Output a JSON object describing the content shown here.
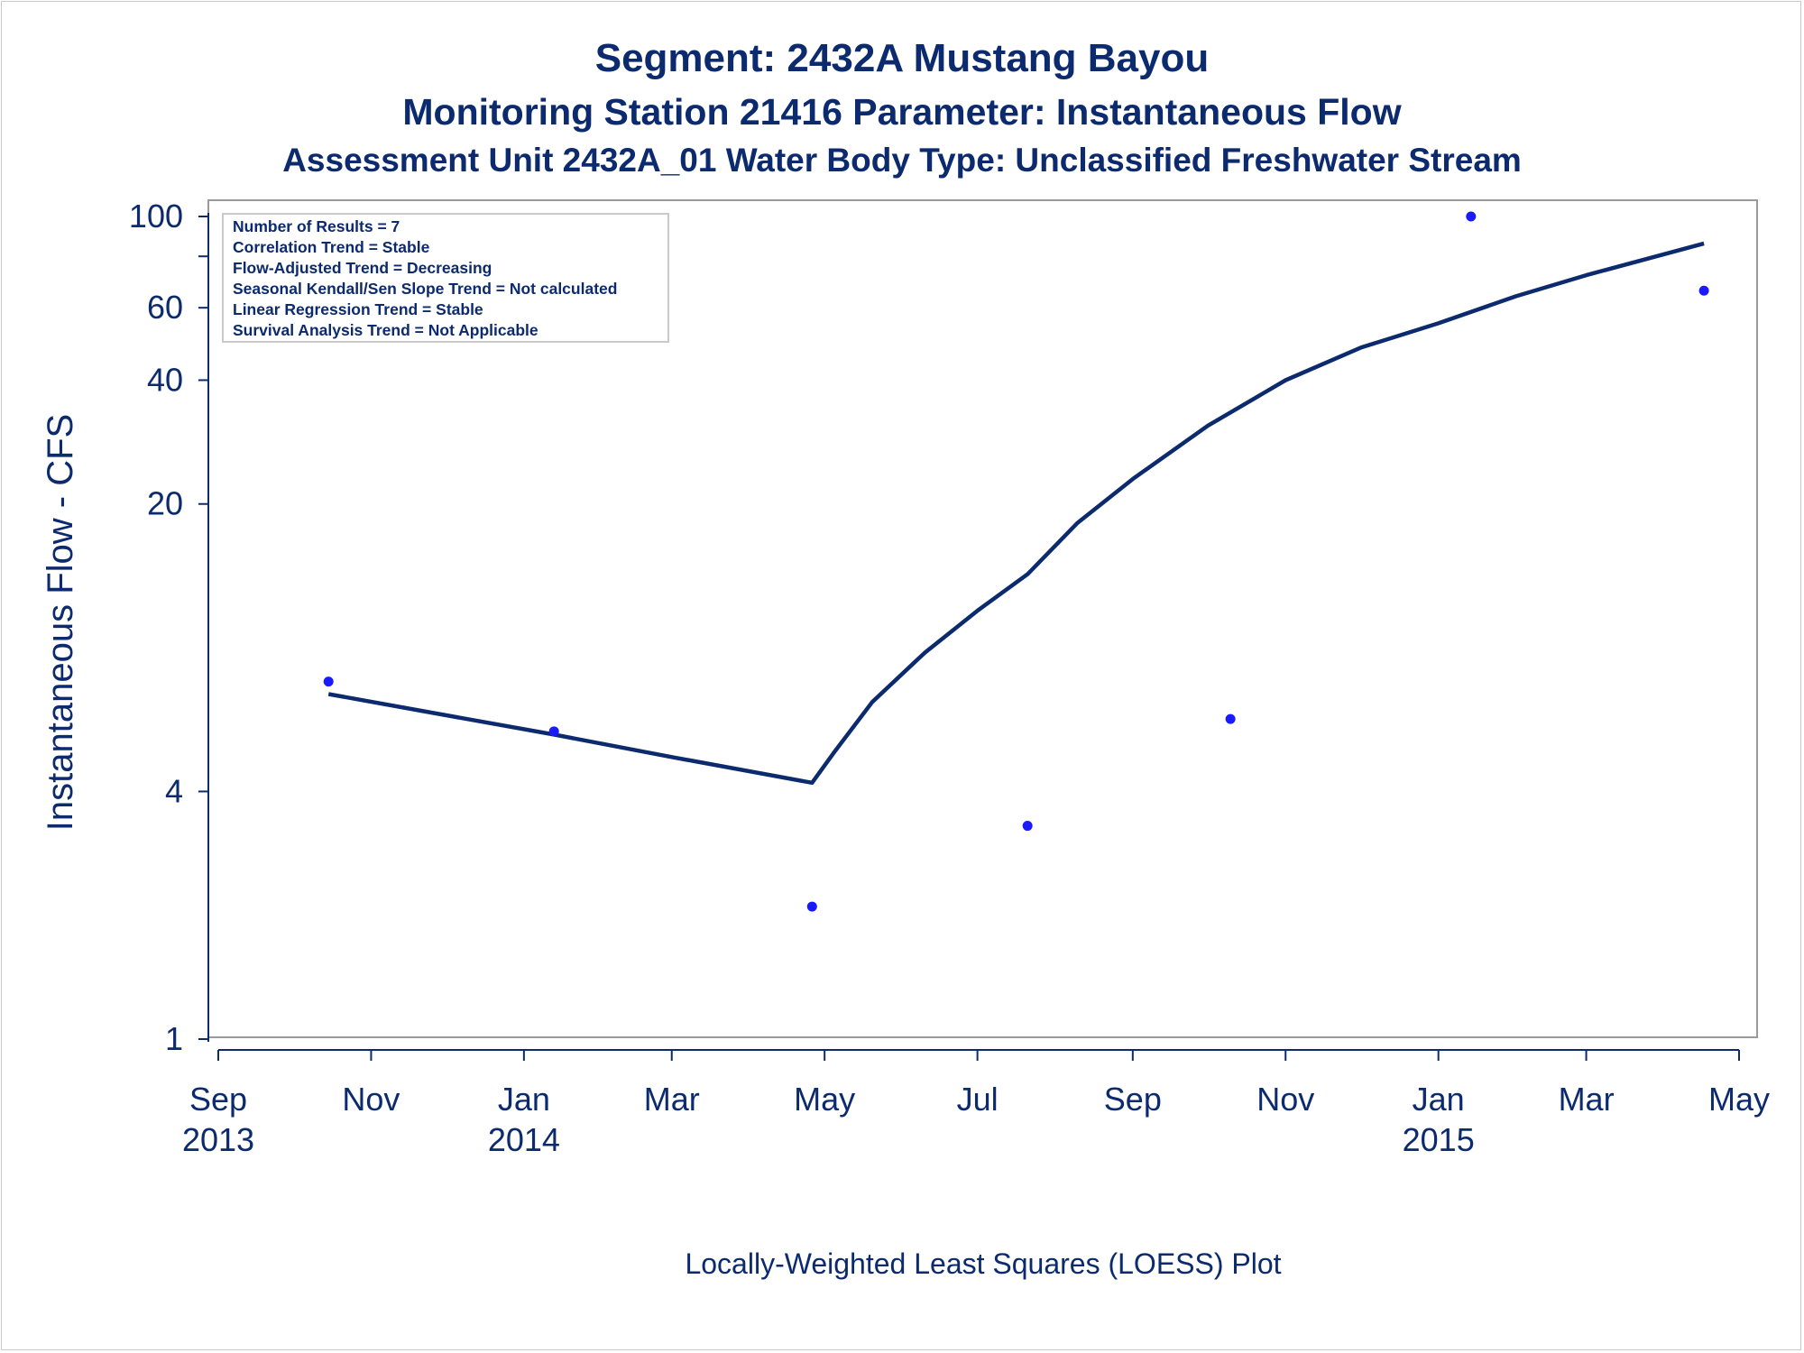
{
  "titles": {
    "line1": "Segment: 2432A  Mustang Bayou",
    "line2": "Monitoring Station 21416 Parameter: Instantaneous Flow",
    "line3": "Assessment Unit 2432A_01   Water Body Type: Unclassified Freshwater Stream"
  },
  "stats_box": {
    "lines": [
      "Number of Results = 7",
      "Correlation Trend = Stable",
      "Flow-Adjusted Trend = Decreasing",
      "Seasonal Kendall/Sen Slope Trend = Not calculated",
      "Linear Regression Trend = Stable",
      "Survival Analysis Trend = Not Applicable"
    ]
  },
  "footnote": "Locally-Weighted Least Squares (LOESS) Plot",
  "colors": {
    "text": "#0c2a6e",
    "loess_line": "#0c2a6e",
    "points": "#1a1aff",
    "frame": "#9a9a9a"
  },
  "chart_data": {
    "type": "scatter",
    "title": "",
    "xlabel": "",
    "ylabel": "Instantaneous Flow - CFS",
    "y_scale": "log",
    "ylim": [
      1,
      100
    ],
    "xlim": [
      "2013-09-01",
      "2015-05-01"
    ],
    "y_ticks": [
      {
        "value": 1,
        "label": "1"
      },
      {
        "value": 4,
        "label": "4"
      },
      {
        "value": 20,
        "label": "20"
      },
      {
        "value": 40,
        "label": "40"
      },
      {
        "value": 60,
        "label": "60"
      },
      {
        "value": 100,
        "label": "100"
      }
    ],
    "y_minor_ticks": [
      80
    ],
    "x_ticks": [
      {
        "date": "2013-09-01",
        "label": "Sep",
        "year": "2013"
      },
      {
        "date": "2013-11-01",
        "label": "Nov",
        "year": ""
      },
      {
        "date": "2014-01-01",
        "label": "Jan",
        "year": "2014"
      },
      {
        "date": "2014-03-01",
        "label": "Mar",
        "year": ""
      },
      {
        "date": "2014-05-01",
        "label": "May",
        "year": ""
      },
      {
        "date": "2014-07-01",
        "label": "Jul",
        "year": ""
      },
      {
        "date": "2014-09-01",
        "label": "Sep",
        "year": ""
      },
      {
        "date": "2014-11-01",
        "label": "Nov",
        "year": ""
      },
      {
        "date": "2015-01-01",
        "label": "Jan",
        "year": "2015"
      },
      {
        "date": "2015-03-01",
        "label": "Mar",
        "year": ""
      },
      {
        "date": "2015-05-01",
        "label": "May",
        "year": ""
      }
    ],
    "points": [
      {
        "x": "2013-10-15",
        "y": 7.4
      },
      {
        "x": "2014-01-13",
        "y": 5.6
      },
      {
        "x": "2014-04-26",
        "y": 2.1
      },
      {
        "x": "2014-07-21",
        "y": 3.3
      },
      {
        "x": "2014-10-10",
        "y": 6.0
      },
      {
        "x": "2015-01-14",
        "y": 100
      },
      {
        "x": "2015-04-17",
        "y": 66
      }
    ],
    "loess": [
      {
        "x": "2013-10-15",
        "y": 6.9
      },
      {
        "x": "2013-11-20",
        "y": 6.3
      },
      {
        "x": "2014-01-13",
        "y": 5.5
      },
      {
        "x": "2014-03-01",
        "y": 4.85
      },
      {
        "x": "2014-04-26",
        "y": 4.2
      },
      {
        "x": "2014-05-05",
        "y": 5.0
      },
      {
        "x": "2014-05-20",
        "y": 6.6
      },
      {
        "x": "2014-06-10",
        "y": 8.7
      },
      {
        "x": "2014-07-01",
        "y": 11.0
      },
      {
        "x": "2014-07-21",
        "y": 13.5
      },
      {
        "x": "2014-08-10",
        "y": 18.0
      },
      {
        "x": "2014-09-01",
        "y": 23.0
      },
      {
        "x": "2014-10-01",
        "y": 31.0
      },
      {
        "x": "2014-11-01",
        "y": 40.0
      },
      {
        "x": "2014-12-01",
        "y": 48.0
      },
      {
        "x": "2015-01-01",
        "y": 55.0
      },
      {
        "x": "2015-02-01",
        "y": 64.0
      },
      {
        "x": "2015-03-01",
        "y": 72.0
      },
      {
        "x": "2015-04-17",
        "y": 86.0
      }
    ]
  }
}
